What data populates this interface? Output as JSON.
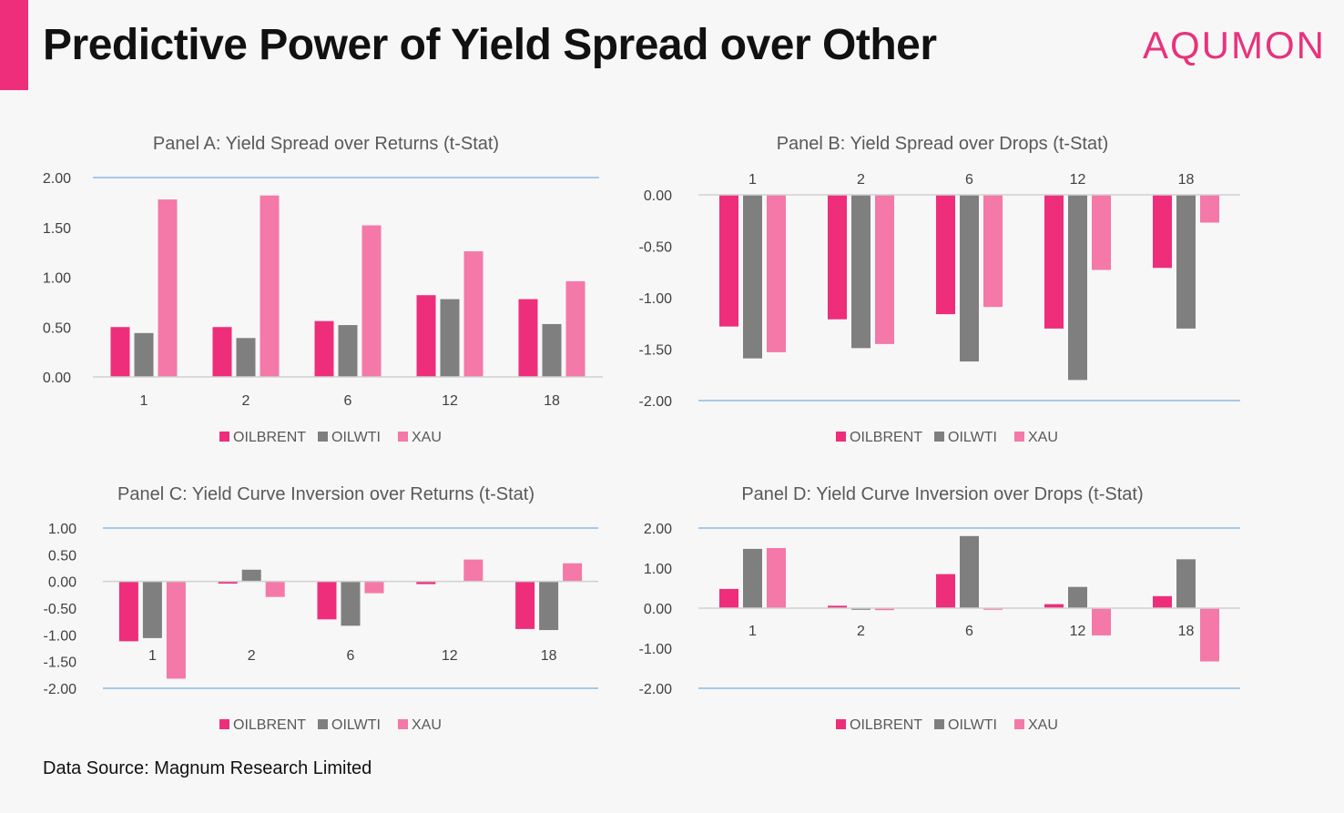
{
  "header": {
    "title": "Predictive Power of Yield Spread over Other",
    "brand": "AQUMON"
  },
  "footer": {
    "source": "Data Source: Magnum Research Limited"
  },
  "colors": {
    "OILBRENT": "#ee2e7a",
    "OILWTI": "#7f7f7f",
    "XAU": "#f478a8"
  },
  "chart_data": [
    {
      "type": "bar",
      "title": "Panel A: Yield Spread over Returns (t-Stat)",
      "categories": [
        "1",
        "2",
        "6",
        "12",
        "18"
      ],
      "series": [
        {
          "name": "OILBRENT",
          "values": [
            0.5,
            0.5,
            0.56,
            0.82,
            0.78
          ]
        },
        {
          "name": "OILWTI",
          "values": [
            0.44,
            0.39,
            0.52,
            0.78,
            0.53
          ]
        },
        {
          "name": "XAU",
          "values": [
            1.78,
            1.82,
            1.52,
            1.26,
            0.96
          ]
        }
      ],
      "ylim": [
        0,
        2
      ],
      "yticks": [
        "2.00",
        "1.50",
        "1.00",
        "0.50",
        "0.00"
      ],
      "legend": "bottom",
      "xlabel": "",
      "ylabel": ""
    },
    {
      "type": "bar",
      "title": "Panel B: Yield Spread over Drops (t-Stat)",
      "categories": [
        "1",
        "2",
        "6",
        "12",
        "18"
      ],
      "series": [
        {
          "name": "OILBRENT",
          "values": [
            -1.28,
            -1.21,
            -1.16,
            -1.3,
            -0.71
          ]
        },
        {
          "name": "OILWTI",
          "values": [
            -1.59,
            -1.49,
            -1.62,
            -1.8,
            -1.3
          ]
        },
        {
          "name": "XAU",
          "values": [
            -1.53,
            -1.45,
            -1.09,
            -0.73,
            -0.27
          ]
        }
      ],
      "ylim": [
        -2,
        0
      ],
      "yticks": [
        "0.00",
        "-0.50",
        "-1.00",
        "-1.50",
        "-2.00"
      ],
      "legend": "bottom",
      "xlabel": "",
      "ylabel": ""
    },
    {
      "type": "bar",
      "title": "Panel C: Yield Curve Inversion over Returns (t-Stat)",
      "categories": [
        "1",
        "2",
        "6",
        "12",
        "18"
      ],
      "series": [
        {
          "name": "OILBRENT",
          "values": [
            -1.12,
            -0.04,
            -0.71,
            -0.05,
            -0.89
          ]
        },
        {
          "name": "OILWTI",
          "values": [
            -1.06,
            0.22,
            -0.83,
            0.0,
            -0.91
          ]
        },
        {
          "name": "XAU",
          "values": [
            -1.82,
            -0.29,
            -0.22,
            0.41,
            0.34
          ]
        }
      ],
      "ylim": [
        -2,
        1
      ],
      "yticks": [
        "1.00",
        "0.50",
        "0.00",
        "-0.50",
        "-1.00",
        "-1.50",
        "-2.00"
      ],
      "legend": "bottom",
      "xlabel": "",
      "ylabel": ""
    },
    {
      "type": "bar",
      "title": "Panel D: Yield Curve Inversion over Drops (t-Stat)",
      "categories": [
        "1",
        "2",
        "6",
        "12",
        "18"
      ],
      "series": [
        {
          "name": "OILBRENT",
          "values": [
            0.48,
            0.06,
            0.85,
            0.1,
            0.3
          ]
        },
        {
          "name": "OILWTI",
          "values": [
            1.48,
            -0.04,
            1.8,
            0.53,
            1.22
          ]
        },
        {
          "name": "XAU",
          "values": [
            1.5,
            -0.05,
            -0.04,
            -0.68,
            -1.33
          ]
        }
      ],
      "ylim": [
        -2,
        2
      ],
      "yticks": [
        "2.00",
        "1.00",
        "0.00",
        "-1.00",
        "-2.00"
      ],
      "legend": "bottom",
      "xlabel": "",
      "ylabel": ""
    }
  ]
}
